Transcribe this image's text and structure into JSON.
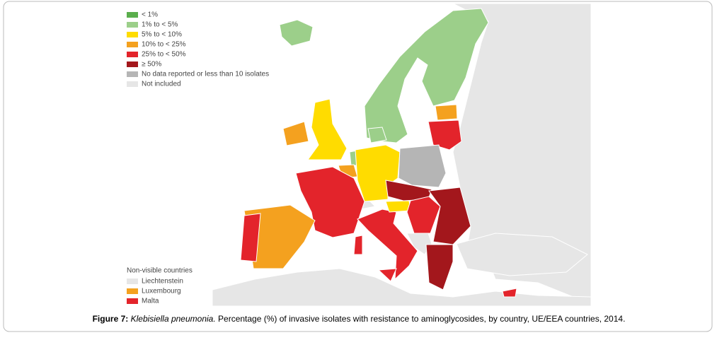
{
  "legend": {
    "items": [
      {
        "label": "< 1%",
        "color": "#5aae4c"
      },
      {
        "label": "1% to < 5%",
        "color": "#9ccf8a"
      },
      {
        "label": "5% to < 10%",
        "color": "#ffdc00"
      },
      {
        "label": "10% to < 25%",
        "color": "#f4a11f"
      },
      {
        "label": "25% to < 50%",
        "color": "#e3242b"
      },
      {
        "label": "≥ 50%",
        "color": "#a3171c"
      },
      {
        "label": "No data reported or less than 10 isolates",
        "color": "#b5b5b5"
      },
      {
        "label": "Not included",
        "color": "#e6e6e6"
      }
    ]
  },
  "non_visible": {
    "title": "Non-visible countries",
    "items": [
      {
        "label": "Liechtenstein",
        "color": "#e6e6e6"
      },
      {
        "label": "Luxembourg",
        "color": "#f4a11f"
      },
      {
        "label": "Malta",
        "color": "#e3242b"
      }
    ]
  },
  "caption": {
    "label": "Figure 7:",
    "species": "Klebisiella pneumonia.",
    "text": "Percentage (%) of invasive isolates with resistance to  aminoglycosides, by country, UE/EEA countries, 2014."
  }
}
